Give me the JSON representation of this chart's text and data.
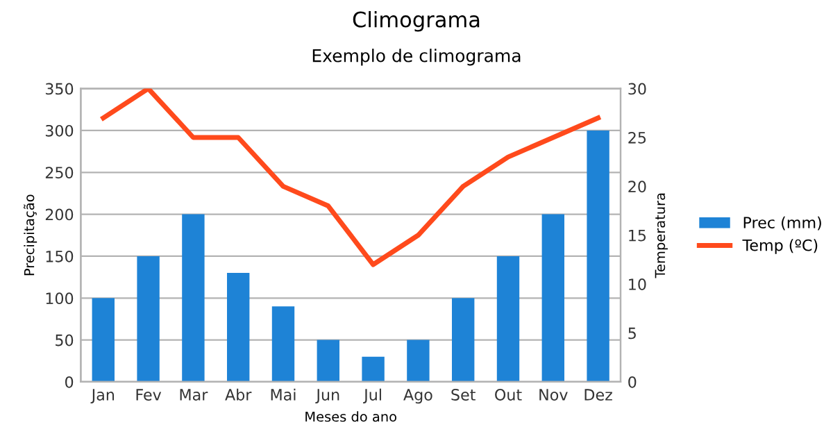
{
  "chart_data": {
    "type": "bar",
    "title": "Climograma",
    "subtitle": "Exemplo de climograma",
    "xlabel": "Meses do ano",
    "ylabel": "Precipitação",
    "y2label": "Temperatura",
    "categories": [
      "Jan",
      "Fev",
      "Mar",
      "Abr",
      "Mai",
      "Jun",
      "Jul",
      "Ago",
      "Set",
      "Out",
      "Nov",
      "Dez"
    ],
    "series": [
      {
        "name": "Prec (mm)",
        "color": "#1e83d6",
        "values": [
          100,
          150,
          200,
          130,
          90,
          50,
          30,
          50,
          100,
          150,
          200,
          300
        ]
      },
      {
        "name": "Temp (ºC)",
        "type": "line",
        "axis": "y2",
        "color": "#ff4a1c",
        "values": [
          27,
          30,
          25,
          25,
          20,
          18,
          12,
          15,
          20,
          23,
          25,
          27
        ]
      }
    ],
    "ylim": [
      0,
      350
    ],
    "yticks": [
      0,
      50,
      100,
      150,
      200,
      250,
      300,
      350
    ],
    "y2lim": [
      0,
      30
    ],
    "y2ticks": [
      0,
      5,
      10,
      15,
      20,
      25,
      30
    ],
    "grid": "y",
    "legend": "right",
    "marker": "none",
    "line_style": "solid"
  }
}
